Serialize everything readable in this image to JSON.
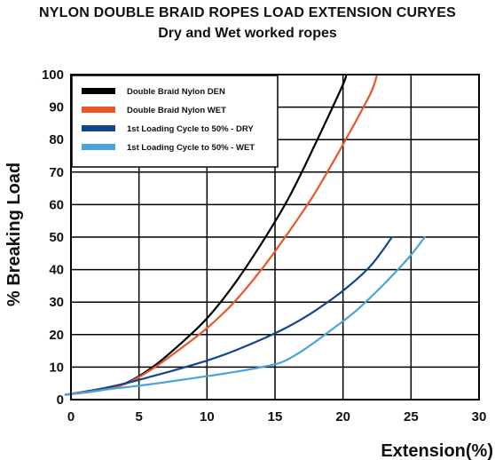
{
  "chart_data": {
    "type": "line",
    "title": "NYLON DOUBLE BRAID ROPES LOAD EXTENSION CURYES",
    "subtitle": "Dry and Wet worked ropes",
    "xlabel": "Extension(%)",
    "ylabel": "% Breaking Load",
    "xlim": [
      0,
      30
    ],
    "ylim": [
      0,
      100
    ],
    "xticks": [
      0,
      5,
      10,
      15,
      20,
      25,
      30
    ],
    "yticks": [
      0,
      10,
      20,
      30,
      40,
      50,
      60,
      70,
      80,
      90,
      100
    ],
    "grid": true,
    "legend_position": "top-left",
    "series": [
      {
        "name": "Double Braid Nylon DEN",
        "color": "#000000",
        "points": [
          [
            -0.4,
            1.5
          ],
          [
            2,
            3
          ],
          [
            4,
            5
          ],
          [
            6,
            10
          ],
          [
            8,
            17
          ],
          [
            10,
            25
          ],
          [
            12,
            35.5
          ],
          [
            14,
            48
          ],
          [
            16,
            62
          ],
          [
            18,
            79
          ],
          [
            20,
            97
          ],
          [
            20.2,
            100
          ]
        ]
      },
      {
        "name": "Double Braid Nylon WET",
        "color": "#e8572a",
        "points": [
          [
            -0.4,
            1.5
          ],
          [
            2,
            2.7
          ],
          [
            4,
            4.8
          ],
          [
            6,
            9.5
          ],
          [
            8,
            15.5
          ],
          [
            10,
            22
          ],
          [
            12,
            30
          ],
          [
            14,
            40
          ],
          [
            16,
            51.5
          ],
          [
            18,
            64
          ],
          [
            20,
            78.5
          ],
          [
            22,
            94
          ],
          [
            22.5,
            100
          ]
        ]
      },
      {
        "name": "1st Loading Cycle to 50% - DRY",
        "color": "#13468f",
        "points": [
          [
            -0.4,
            1.5
          ],
          [
            2,
            3.2
          ],
          [
            4,
            5
          ],
          [
            6,
            7.2
          ],
          [
            8,
            9.5
          ],
          [
            10,
            12
          ],
          [
            12,
            15
          ],
          [
            14,
            18.5
          ],
          [
            16,
            22.5
          ],
          [
            18,
            27.5
          ],
          [
            20,
            33.5
          ],
          [
            22,
            41
          ],
          [
            23.6,
            50
          ]
        ]
      },
      {
        "name": "1st Loading Cycle to 50% - WET",
        "color": "#4aa3db",
        "points": [
          [
            -0.4,
            1.5
          ],
          [
            2,
            2.8
          ],
          [
            4,
            3.8
          ],
          [
            6,
            4.8
          ],
          [
            8,
            6
          ],
          [
            10,
            7.2
          ],
          [
            12,
            8.5
          ],
          [
            14,
            10
          ],
          [
            15.5,
            11.5
          ],
          [
            17,
            15
          ],
          [
            19,
            21
          ],
          [
            21,
            27.5
          ],
          [
            23,
            35.5
          ],
          [
            25,
            44.5
          ],
          [
            26,
            50
          ]
        ]
      }
    ]
  }
}
